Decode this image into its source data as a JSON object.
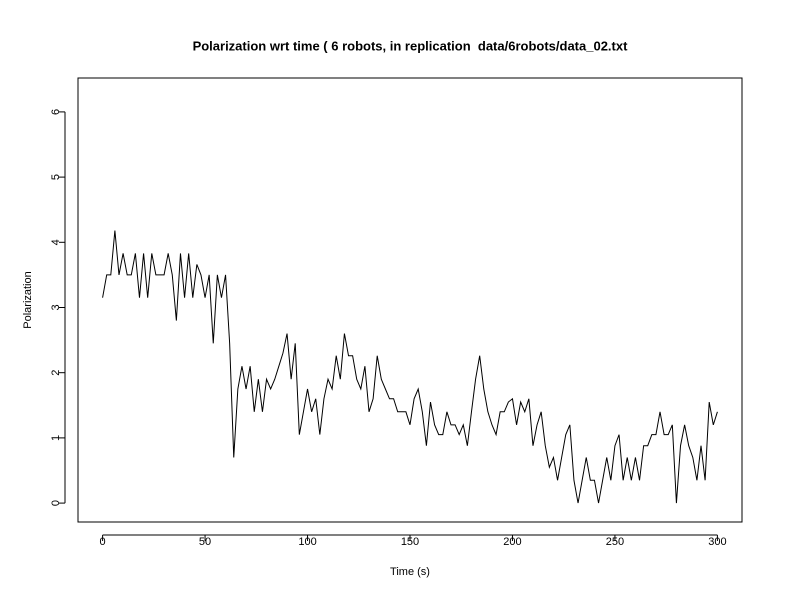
{
  "chart_data": {
    "type": "line",
    "title": "Polarization wrt time ( 6 robots, in replication  data/6robots/data_02.txt",
    "xlabel": "Time (s)",
    "ylabel": "Polarization",
    "color": "#000000",
    "x": [
      0,
      2,
      4,
      6,
      8,
      10,
      12,
      14,
      16,
      18,
      20,
      22,
      24,
      26,
      28,
      30,
      32,
      34,
      36,
      38,
      40,
      42,
      44,
      46,
      48,
      50,
      52,
      54,
      56,
      58,
      60,
      62,
      64,
      66,
      68,
      70,
      72,
      74,
      76,
      78,
      80,
      82,
      84,
      86,
      88,
      90,
      92,
      94,
      96,
      98,
      100,
      102,
      104,
      106,
      108,
      110,
      112,
      114,
      116,
      118,
      120,
      122,
      124,
      126,
      128,
      130,
      132,
      134,
      136,
      138,
      140,
      142,
      144,
      146,
      148,
      150,
      152,
      154,
      156,
      158,
      160,
      162,
      164,
      166,
      168,
      170,
      172,
      174,
      176,
      178,
      180,
      182,
      184,
      186,
      188,
      190,
      192,
      194,
      196,
      198,
      200,
      202,
      204,
      206,
      208,
      210,
      212,
      214,
      216,
      218,
      220,
      222,
      224,
      226,
      228,
      230,
      232,
      234,
      236,
      238,
      240,
      242,
      244,
      246,
      248,
      250,
      252,
      254,
      256,
      258,
      260,
      262,
      264,
      266,
      268,
      270,
      272,
      274,
      276,
      278,
      280,
      282,
      284,
      286,
      288,
      290,
      292,
      294,
      296,
      298,
      300
    ],
    "values": [
      3.15,
      3.5,
      3.5,
      4.18,
      3.5,
      3.83,
      3.5,
      3.5,
      3.83,
      3.15,
      3.83,
      3.15,
      3.83,
      3.5,
      3.5,
      3.5,
      3.83,
      3.5,
      2.8,
      3.83,
      3.15,
      3.83,
      3.15,
      3.66,
      3.5,
      3.15,
      3.5,
      2.45,
      3.5,
      3.15,
      3.5,
      2.45,
      0.7,
      1.75,
      2.1,
      1.75,
      2.1,
      1.4,
      1.9,
      1.4,
      1.9,
      1.75,
      1.9,
      2.1,
      2.3,
      2.6,
      1.9,
      2.45,
      1.05,
      1.4,
      1.75,
      1.4,
      1.6,
      1.05,
      1.6,
      1.9,
      1.75,
      2.26,
      1.9,
      2.6,
      2.26,
      2.26,
      1.9,
      1.75,
      2.1,
      1.4,
      1.6,
      2.26,
      1.9,
      1.75,
      1.6,
      1.6,
      1.4,
      1.4,
      1.4,
      1.2,
      1.6,
      1.75,
      1.4,
      0.88,
      1.55,
      1.2,
      1.05,
      1.05,
      1.4,
      1.2,
      1.2,
      1.05,
      1.2,
      0.88,
      1.4,
      1.9,
      2.26,
      1.75,
      1.4,
      1.2,
      1.05,
      1.4,
      1.4,
      1.55,
      1.6,
      1.2,
      1.55,
      1.4,
      1.6,
      0.88,
      1.2,
      1.4,
      0.88,
      0.55,
      0.7,
      0.35,
      0.7,
      1.05,
      1.2,
      0.35,
      0,
      0.35,
      0.7,
      0.35,
      0.35,
      0,
      0.35,
      0.7,
      0.35,
      0.88,
      1.05,
      0.35,
      0.7,
      0.35,
      0.7,
      0.35,
      0.88,
      0.88,
      1.05,
      1.05,
      1.4,
      1.05,
      1.05,
      1.2,
      0,
      0.88,
      1.2,
      0.88,
      0.7,
      0.35,
      0.88,
      0.35,
      1.55,
      1.2,
      1.4
    ],
    "xlim": [
      -12,
      312
    ],
    "ylim": [
      -0.29,
      6.52
    ],
    "xticks": [
      0,
      50,
      100,
      150,
      200,
      250,
      300
    ],
    "yticks": [
      0,
      1,
      2,
      3,
      4,
      5,
      6
    ]
  }
}
